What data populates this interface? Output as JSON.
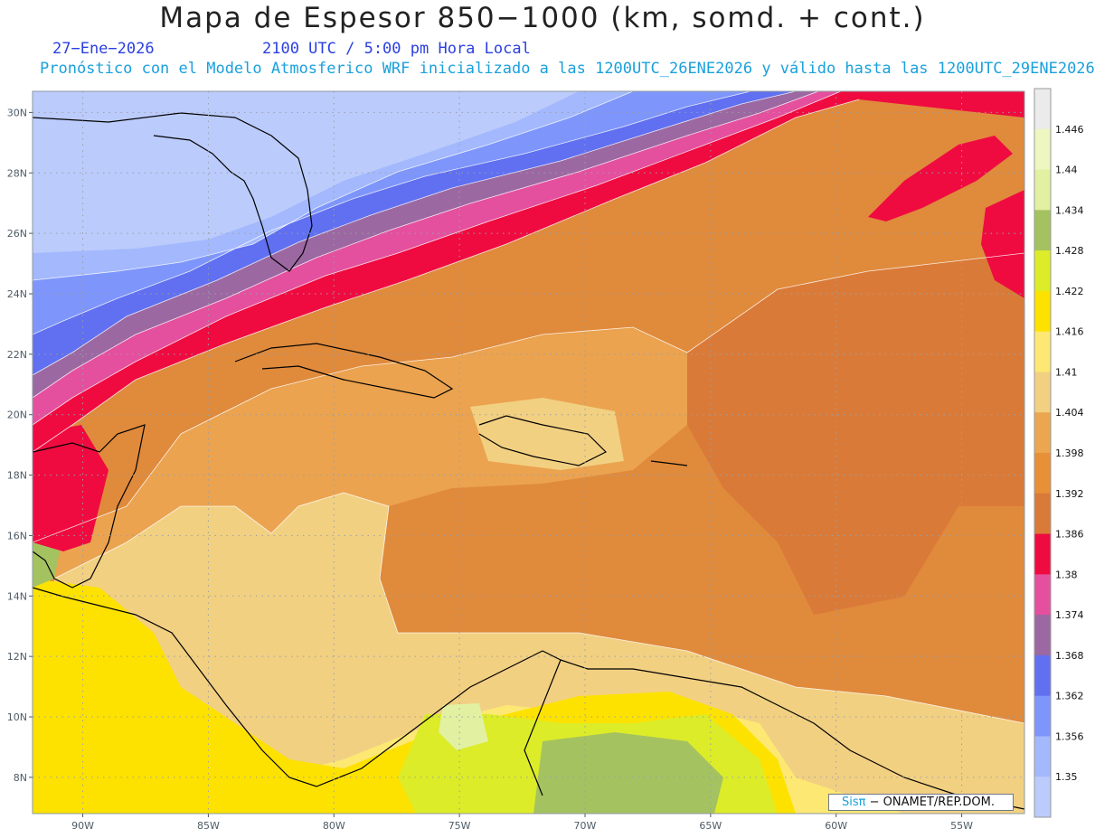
{
  "header": {
    "title": "Mapa de Espesor 850−1000 (km, somd. + cont.)",
    "date": "27−Ene−2026",
    "time": "2100 UTC / 5:00 pm Hora Local",
    "model_info": "Pronóstico con el Modelo Atmosferico WRF inicializado a las 1200UTC_26ENE2026 y válido hasta las  1200UTC_29ENE2026"
  },
  "map": {
    "lat_labels": [
      "30N",
      "28N",
      "26N",
      "24N",
      "22N",
      "20N",
      "18N",
      "16N",
      "14N",
      "12N",
      "10N",
      "8N"
    ],
    "lon_labels": [
      "90W",
      "85W",
      "80W",
      "75W",
      "70W",
      "65W",
      "60W",
      "55W"
    ],
    "lat_values": [
      30,
      28,
      26,
      24,
      22,
      20,
      18,
      16,
      14,
      12,
      10,
      8
    ],
    "lon_values": [
      -90,
      -85,
      -80,
      -75,
      -70,
      -65,
      -60,
      -55
    ],
    "extent": {
      "lon_min": -92,
      "lon_max": -52.5,
      "lat_min": 6.8,
      "lat_max": 30.7
    }
  },
  "colorbar": {
    "labels": [
      "1.446",
      "1.44",
      "1.434",
      "1.428",
      "1.422",
      "1.416",
      "1.41",
      "1.404",
      "1.398",
      "1.392",
      "1.386",
      "1.38",
      "1.374",
      "1.368",
      "1.362",
      "1.356",
      "1.35"
    ],
    "colors": [
      "#ebebeb",
      "#eef7c0",
      "#e2f0a2",
      "#a5c260",
      "#dcec28",
      "#fde200",
      "#fde873",
      "#f2d082",
      "#eca650",
      "#e79038",
      "#da7a38",
      "#ef0b40",
      "#e4509e",
      "#9c68a2",
      "#6070f0",
      "#7e96fb",
      "#a3b8fd",
      "#bbcbfc"
    ]
  },
  "credit": {
    "sis": "Sisπ",
    "text": " − ONAMET/REP.DOM."
  }
}
